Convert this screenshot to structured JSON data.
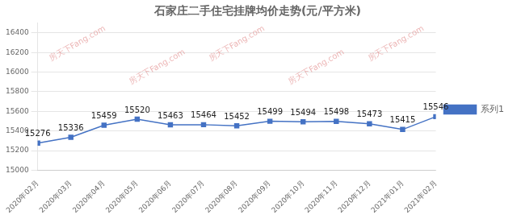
{
  "chart_data": {
    "type": "line",
    "title": "石家庄二手住宅挂牌均价走势(元/平方米)",
    "categories": [
      "2020年02月",
      "2020年03月",
      "2020年04月",
      "2020年05月",
      "2020年06月",
      "2020年07月",
      "2020年08月",
      "2020年09月",
      "2020年10月",
      "2020年11月",
      "2020年12月",
      "2021年01月",
      "2021年02月"
    ],
    "series": [
      {
        "name": "系列1",
        "color": "#4472C4",
        "marker": "square",
        "values": [
          15276,
          15336,
          15459,
          15520,
          15463,
          15464,
          15452,
          15499,
          15494,
          15498,
          15473,
          15415,
          15546
        ]
      }
    ],
    "ylim": [
      15000,
      16500
    ],
    "yticks": [
      15000,
      15200,
      15400,
      15600,
      15800,
      16000,
      16200,
      16400
    ],
    "grid": true,
    "legend": "right",
    "data_labels": true,
    "annotations": [
      "房天下Fang.com",
      "房天下Fang.com",
      "房天下Fang.com",
      "房天下Fang.com",
      "房天下Fang.com"
    ]
  }
}
